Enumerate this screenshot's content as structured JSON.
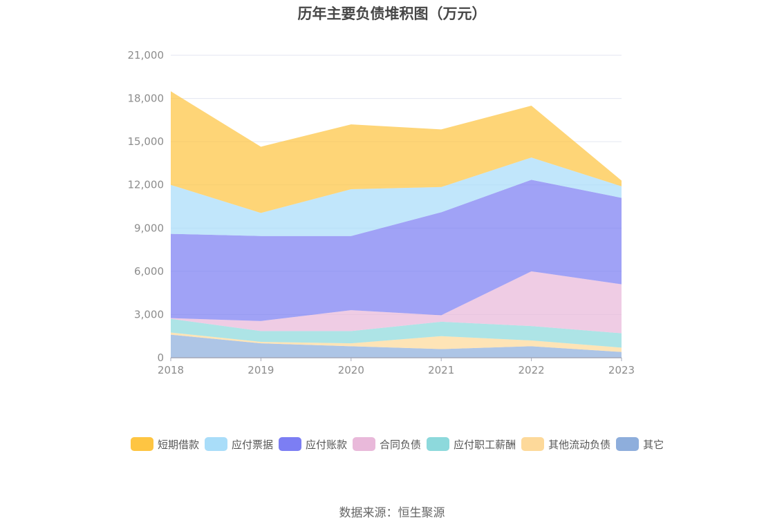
{
  "chart_data": {
    "type": "area",
    "stacked": true,
    "title": "历年主要负债堆积图（万元）",
    "categories": [
      "2018",
      "2019",
      "2020",
      "2021",
      "2022",
      "2023"
    ],
    "ylim": [
      0,
      21000
    ],
    "yticks": [
      "0",
      "3,000",
      "6,000",
      "9,000",
      "12,000",
      "15,000",
      "18,000",
      "21,000"
    ],
    "grid": true,
    "legend_position": "bottom-left",
    "series": [
      {
        "name": "其它",
        "color": "#8eaedc",
        "values": [
          1600,
          1000,
          800,
          600,
          800,
          400
        ]
      },
      {
        "name": "其他流动负债",
        "color": "#fdd99a",
        "values": [
          150,
          100,
          200,
          900,
          400,
          300
        ]
      },
      {
        "name": "应付职工薪酬",
        "color": "#8dd9dc",
        "values": [
          950,
          750,
          850,
          1000,
          1000,
          1000
        ]
      },
      {
        "name": "合同负债",
        "color": "#e9b9da",
        "values": [
          50,
          700,
          1450,
          450,
          3800,
          3400
        ]
      },
      {
        "name": "应付账款",
        "color": "#7c7ef3",
        "values": [
          5850,
          5900,
          5150,
          7150,
          6350,
          6000
        ]
      },
      {
        "name": "应付票据",
        "color": "#a9ddf9",
        "values": [
          3400,
          1600,
          3250,
          1750,
          1550,
          800
        ]
      },
      {
        "name": "短期借款",
        "color": "#fec542",
        "values": [
          6500,
          4600,
          4500,
          4000,
          3600,
          400
        ]
      }
    ]
  },
  "legend_order": [
    6,
    5,
    4,
    3,
    2,
    1,
    0
  ],
  "source_text": "数据来源：恒生聚源"
}
